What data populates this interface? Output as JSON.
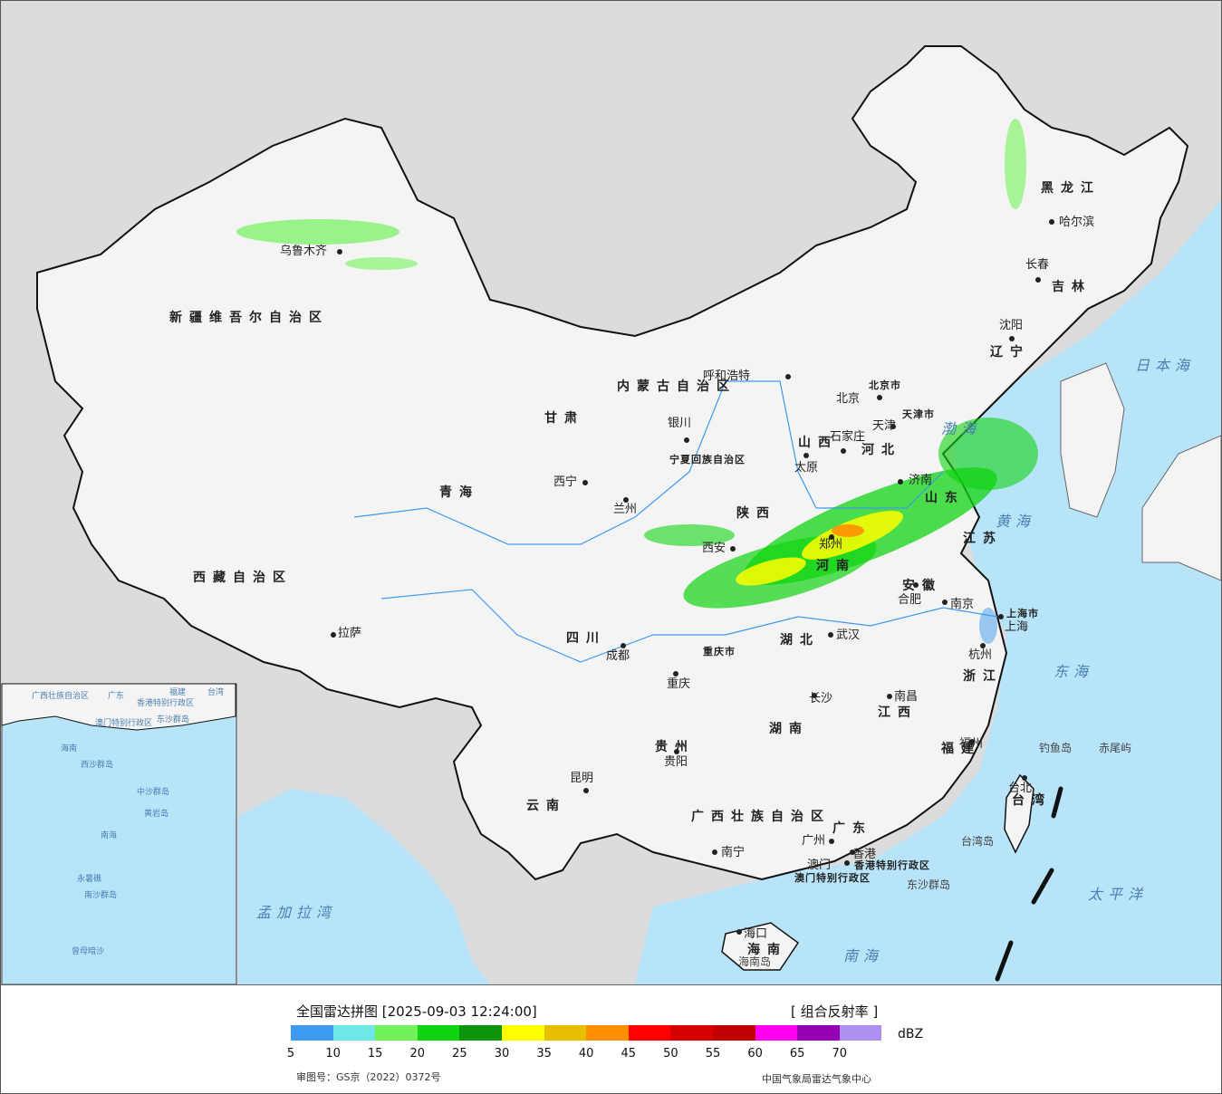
{
  "map": {
    "cities": [
      {
        "name": "乌鲁木齐"
      },
      {
        "name": "拉萨"
      },
      {
        "name": "西宁"
      },
      {
        "name": "兰州"
      },
      {
        "name": "银川"
      },
      {
        "name": "呼和浩特"
      },
      {
        "name": "北京"
      },
      {
        "name": "天津"
      },
      {
        "name": "石家庄"
      },
      {
        "name": "太原"
      },
      {
        "name": "西安"
      },
      {
        "name": "郑州"
      },
      {
        "name": "济南"
      },
      {
        "name": "沈阳"
      },
      {
        "name": "长春"
      },
      {
        "name": "哈尔滨"
      },
      {
        "name": "南京"
      },
      {
        "name": "合肥"
      },
      {
        "name": "上海"
      },
      {
        "name": "杭州"
      },
      {
        "name": "武汉"
      },
      {
        "name": "成都"
      },
      {
        "name": "重庆"
      },
      {
        "name": "长沙"
      },
      {
        "name": "南昌"
      },
      {
        "name": "福州"
      },
      {
        "name": "台北"
      },
      {
        "name": "贵阳"
      },
      {
        "name": "昆明"
      },
      {
        "name": "南宁"
      },
      {
        "name": "广州"
      },
      {
        "name": "香港"
      },
      {
        "name": "澳门"
      },
      {
        "name": "海口"
      }
    ],
    "provinces": [
      "新疆维吾尔自治区",
      "西藏自治区",
      "青海",
      "甘肃",
      "内蒙古自治区",
      "黑龙江",
      "吉林",
      "辽宁",
      "河北",
      "山西",
      "山东",
      "河南",
      "陕西",
      "四川",
      "重庆市",
      "湖北",
      "湖南",
      "江西",
      "安徽",
      "江苏",
      "浙江",
      "上海市",
      "福建",
      "台湾",
      "贵州",
      "云南",
      "广西壮族自治区",
      "广东",
      "海南",
      "宁夏回族自治区",
      "北京市",
      "天津市",
      "香港特别行政区",
      "澳门特别行政区"
    ],
    "seas": [
      "渤海",
      "黄海",
      "东海",
      "南海",
      "日本海",
      "太平洋",
      "孟加拉湾"
    ],
    "islands": [
      "钓鱼岛",
      "赤尾屿",
      "台湾岛",
      "东沙群岛",
      "海南岛"
    ],
    "inset": {
      "labels": [
        "广西壮族自治区",
        "广东",
        "福建",
        "台湾",
        "香港特别行政区",
        "澳门特别行政区",
        "海南",
        "东沙群岛",
        "西沙群岛",
        "中沙群岛",
        "黄岩岛",
        "南海",
        "南沙群岛",
        "永暑礁",
        "曾母暗沙"
      ]
    },
    "colors": {
      "land": "#f4f4f4",
      "sea": "#b8e4fa",
      "outside": "#dcdcdc",
      "border": "#111111"
    }
  },
  "legend": {
    "title": "全国雷达拼图 [2025-09-03 12:24:00]",
    "product": "[ 组合反射率 ]",
    "unit": "dBZ",
    "colors": [
      "#3d9aef",
      "#6ee7e7",
      "#72f25a",
      "#11d411",
      "#0c940c",
      "#fefe00",
      "#e6c000",
      "#fe9000",
      "#fe0000",
      "#d60000",
      "#c00000",
      "#fe00f0",
      "#9600b4",
      "#ad90f0"
    ],
    "ticks": [
      "5",
      "10",
      "15",
      "20",
      "25",
      "30",
      "35",
      "40",
      "45",
      "50",
      "55",
      "60",
      "65",
      "70"
    ],
    "approval": "审图号：GS京（2022）0372号",
    "source": "中国气象局雷达气象中心"
  }
}
